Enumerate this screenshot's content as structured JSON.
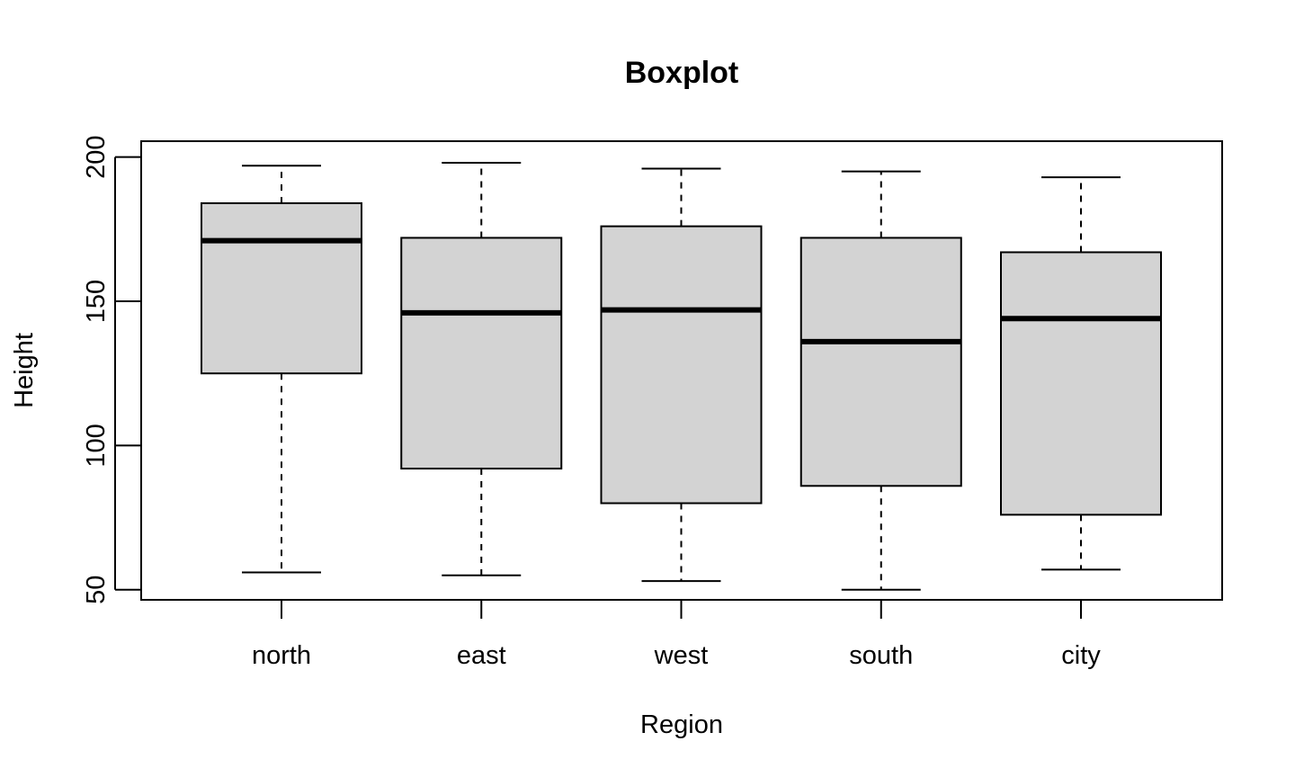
{
  "chart_data": {
    "type": "boxplot",
    "title": "Boxplot",
    "xlabel": "Region",
    "ylabel": "Height",
    "ylim": [
      46.5,
      205.5
    ],
    "yticks": [
      50,
      100,
      150,
      200
    ],
    "grid": false,
    "legend": "none",
    "box_fill": "#d3d3d3",
    "line_color": "#000000",
    "categories": [
      "north",
      "east",
      "west",
      "south",
      "city"
    ],
    "boxes": [
      {
        "category": "north",
        "whisker_low": 56,
        "q1": 125,
        "median": 171,
        "q3": 184,
        "whisker_high": 197
      },
      {
        "category": "east",
        "whisker_low": 55,
        "q1": 92,
        "median": 146,
        "q3": 172,
        "whisker_high": 198
      },
      {
        "category": "west",
        "whisker_low": 53,
        "q1": 80,
        "median": 147,
        "q3": 176,
        "whisker_high": 196
      },
      {
        "category": "south",
        "whisker_low": 50,
        "q1": 86,
        "median": 136,
        "q3": 172,
        "whisker_high": 195
      },
      {
        "category": "city",
        "whisker_low": 57,
        "q1": 76,
        "median": 144,
        "q3": 167,
        "whisker_high": 193
      }
    ]
  }
}
